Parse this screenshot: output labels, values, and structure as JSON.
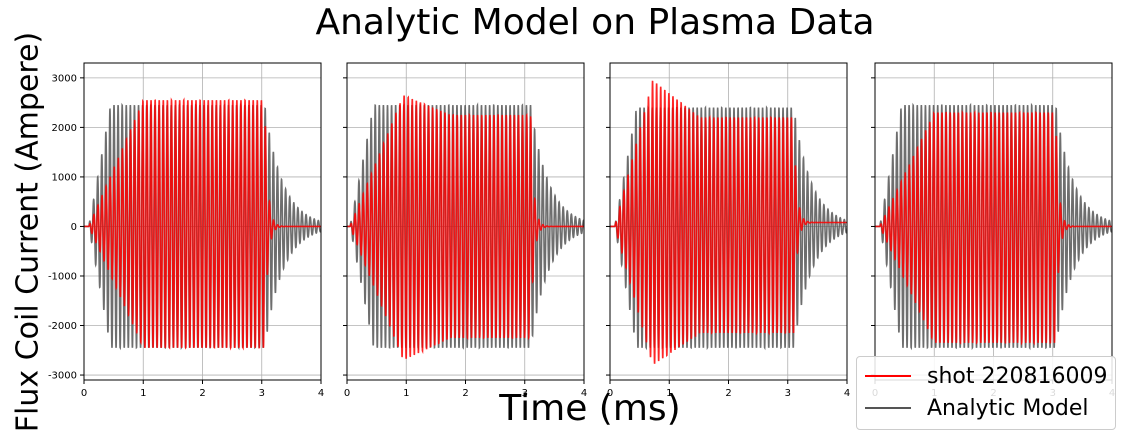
{
  "title": "Analytic Model on Plasma Data",
  "xlabel": "Time (ms)",
  "ylabel": "Flux Coil Current (Ampere)",
  "legend": {
    "placement": "lower-right",
    "entries": [
      {
        "label": "shot 220816009",
        "color": "#ff0000"
      },
      {
        "label": "Analytic Model",
        "color": "#555555"
      }
    ]
  },
  "chart_data": [
    {
      "type": "line",
      "panel": 1,
      "xlim": [
        0,
        4
      ],
      "ylim": [
        -3100,
        3300
      ],
      "xticks": [
        0,
        1,
        2,
        3,
        4
      ],
      "yticks": [
        -3000,
        -2000,
        -1000,
        0,
        1000,
        2000,
        3000
      ],
      "grid": true,
      "sharey": true,
      "series": [
        {
          "name": "shot 220816009",
          "color": "#ff0000",
          "envelope": {
            "onset_ms": 0.08,
            "ramp_to_ms": 1.0,
            "peak_pos": 2550,
            "peak_neg": -2450,
            "cutoff_ms": 3.05,
            "tail_decay_ms": 0.05
          }
        },
        {
          "name": "Analytic Model",
          "color": "#555555",
          "envelope": {
            "onset_ms": 0.08,
            "ramp_to_ms": 0.45,
            "peak_pos": 2450,
            "peak_neg": -2450,
            "cutoff_ms": 3.05,
            "tail_decay_ms": 0.3
          }
        }
      ]
    },
    {
      "type": "line",
      "panel": 2,
      "xlim": [
        0,
        4
      ],
      "ylim": [
        -3100,
        3300
      ],
      "xticks": [
        0,
        1,
        2,
        3,
        4
      ],
      "yticks": [
        -3000,
        -2000,
        -1000,
        0,
        1000,
        2000,
        3000
      ],
      "grid": true,
      "sharey": true,
      "series": [
        {
          "name": "shot 220816009",
          "color": "#ff0000",
          "envelope": {
            "onset_ms": 0.05,
            "ramp_to_ms": 0.95,
            "peak_pos": 2650,
            "peak_neg": -2700,
            "settle_pos": 2250,
            "settle_neg": -2250,
            "cutoff_ms": 3.1,
            "tail_decay_ms": 0.05
          }
        },
        {
          "name": "Analytic Model",
          "color": "#555555",
          "envelope": {
            "onset_ms": 0.05,
            "ramp_to_ms": 0.45,
            "peak_pos": 2450,
            "peak_neg": -2450,
            "cutoff_ms": 3.1,
            "tail_decay_ms": 0.3
          }
        }
      ]
    },
    {
      "type": "line",
      "panel": 3,
      "xlim": [
        0,
        4
      ],
      "ylim": [
        -3100,
        3300
      ],
      "xticks": [
        0,
        1,
        2,
        3,
        4
      ],
      "yticks": [
        -3000,
        -2000,
        -1000,
        0,
        1000,
        2000,
        3000
      ],
      "grid": true,
      "sharey": true,
      "series": [
        {
          "name": "shot 220816009",
          "color": "#ff0000",
          "envelope": {
            "onset_ms": 0.08,
            "ramp_to_ms": 0.72,
            "peak_pos": 2950,
            "peak_neg": -2800,
            "settle_pos": 2200,
            "settle_neg": -2150,
            "cutoff_ms": 3.1,
            "tail_decay_ms": 0.05,
            "offset_after": 80
          }
        },
        {
          "name": "Analytic Model",
          "color": "#555555",
          "envelope": {
            "onset_ms": 0.08,
            "ramp_to_ms": 0.45,
            "peak_pos": 2400,
            "peak_neg": -2450,
            "cutoff_ms": 3.1,
            "tail_decay_ms": 0.3
          }
        }
      ]
    },
    {
      "type": "line",
      "panel": 4,
      "xlim": [
        0,
        4
      ],
      "ylim": [
        -3100,
        3300
      ],
      "xticks": [
        0,
        1,
        2,
        3,
        4
      ],
      "yticks": [
        -3000,
        -2000,
        -1000,
        0,
        1000,
        2000,
        3000
      ],
      "grid": true,
      "sharey": true,
      "series": [
        {
          "name": "shot 220816009",
          "color": "#ff0000",
          "envelope": {
            "onset_ms": 0.08,
            "ramp_to_ms": 1.0,
            "peak_pos": 2300,
            "peak_neg": -2350,
            "cutoff_ms": 3.05,
            "tail_decay_ms": 0.05
          }
        },
        {
          "name": "Analytic Model",
          "color": "#555555",
          "envelope": {
            "onset_ms": 0.08,
            "ramp_to_ms": 0.45,
            "peak_pos": 2450,
            "peak_neg": -2450,
            "cutoff_ms": 3.05,
            "tail_decay_ms": 0.3
          }
        }
      ]
    }
  ]
}
